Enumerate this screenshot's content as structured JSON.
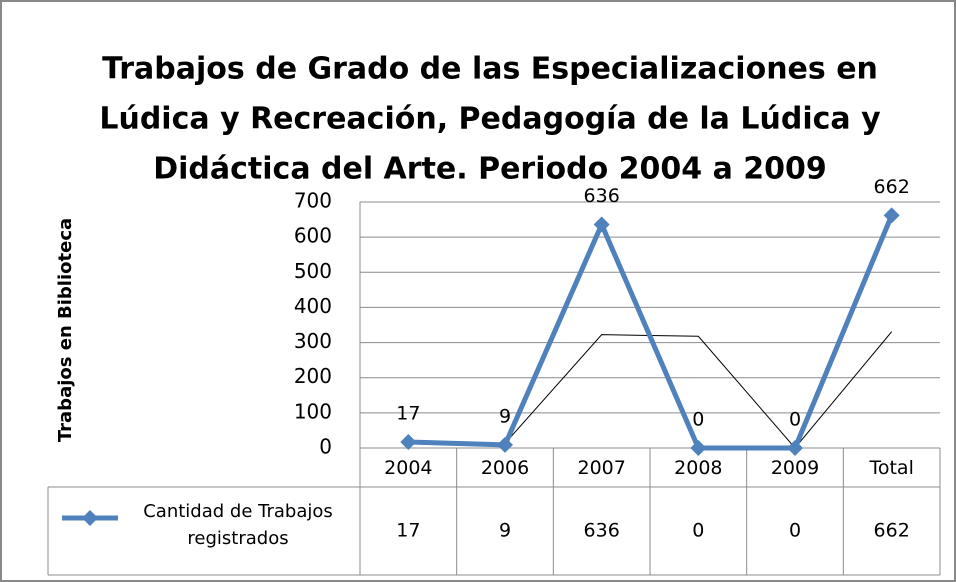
{
  "chart_data": {
    "type": "line",
    "title": [
      "Trabajos de Grado de las Especializaciones en",
      "Lúdica y Recreación, Pedagogía de la Lúdica y",
      "Didáctica del Arte. Periodo 2004 a 2009"
    ],
    "y_label": "Trabajos en Biblioteca",
    "categories": [
      "2004",
      "2006",
      "2007",
      "2008",
      "2009",
      "Total"
    ],
    "series": [
      {
        "name": "Cantidad de Trabajos registrados",
        "color": "#4f81bd",
        "values": [
          17,
          9,
          636,
          0,
          0,
          662
        ]
      }
    ],
    "trendline": {
      "color": "#000000",
      "values": [
        null,
        13,
        322.5,
        318,
        0,
        331
      ]
    },
    "ylim": [
      0,
      700
    ],
    "yticks": [
      0,
      100,
      200,
      300,
      400,
      500,
      600,
      700
    ],
    "grid": true,
    "data_table": true
  }
}
